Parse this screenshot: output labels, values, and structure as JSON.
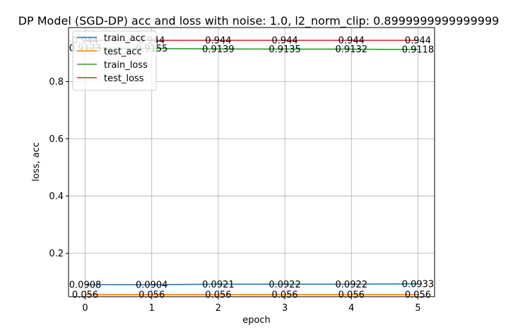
{
  "chart_data": {
    "type": "line",
    "title": "DP Model (SGD-DP) acc and loss with noise: 1.0, l2_norm_clip: 0.8999999999999999",
    "xlabel": "epoch",
    "ylabel": "loss, acc",
    "x": [
      0,
      1,
      2,
      3,
      4,
      5
    ],
    "xlim": [
      -0.25,
      5.25
    ],
    "ylim": [
      0.0485,
      0.9887
    ],
    "xticks": [
      "0",
      "1",
      "2",
      "3",
      "4",
      "5"
    ],
    "yticks": [
      {
        "value": 0.2,
        "label": "0.2"
      },
      {
        "value": 0.4,
        "label": "0.4"
      },
      {
        "value": 0.6,
        "label": "0.6"
      },
      {
        "value": 0.8,
        "label": "0.8"
      }
    ],
    "grid": true,
    "legend_position": "top-left",
    "series": [
      {
        "name": "train_acc",
        "color": "#1f77b4",
        "values": [
          0.0908,
          0.0904,
          0.0921,
          0.0922,
          0.0922,
          0.0933
        ],
        "labels": [
          "0.0908",
          "0.0904",
          "0.0921",
          "0.0922",
          "0.0922",
          "0.0933"
        ]
      },
      {
        "name": "test_acc",
        "color": "#ff7f0e",
        "values": [
          0.056,
          0.056,
          0.056,
          0.056,
          0.056,
          0.056
        ],
        "labels": [
          "0.056",
          "0.056",
          "0.056",
          "0.056",
          "0.056",
          "0.056"
        ]
      },
      {
        "name": "train_loss",
        "color": "#2ca02c",
        "values": [
          0.9173,
          0.9155,
          0.9139,
          0.9135,
          0.9132,
          0.9118
        ],
        "labels": [
          "0.9173",
          "0.9155",
          "0.9139",
          "0.9135",
          "0.9132",
          "0.9118"
        ]
      },
      {
        "name": "test_loss",
        "color": "#d62728",
        "values": [
          0.944,
          0.944,
          0.944,
          0.944,
          0.944,
          0.944
        ],
        "labels": [
          "0.944",
          "0.944",
          "0.944",
          "0.944",
          "0.944",
          "0.944"
        ]
      }
    ]
  }
}
